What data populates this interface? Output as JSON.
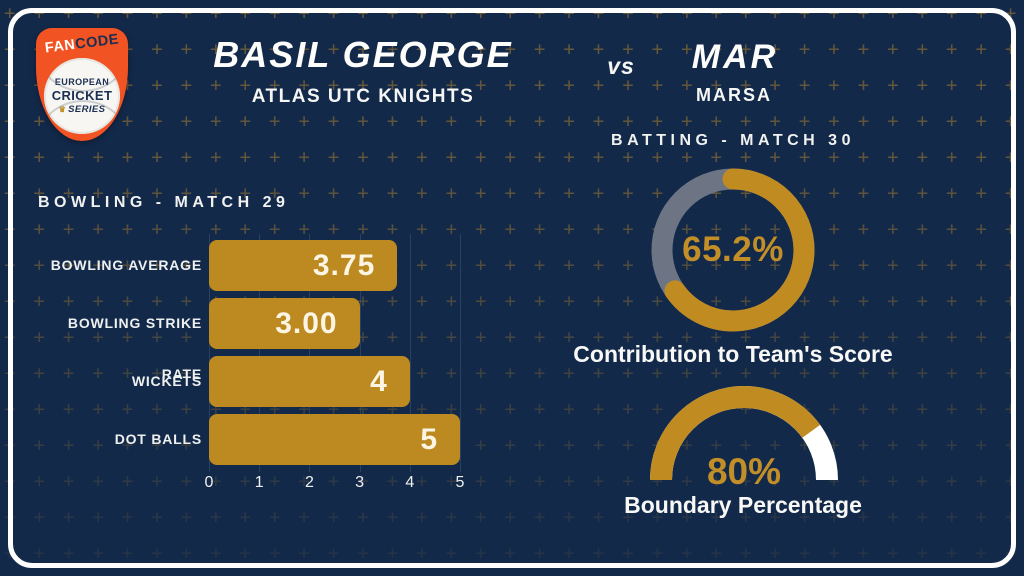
{
  "logo": {
    "brand_fan": "FAN",
    "brand_code": "CODE",
    "circle_line1": "EUROPEAN",
    "circle_line2": "CRICKET",
    "circle_line3": "SERIES"
  },
  "icons": {
    "crown": "♛"
  },
  "header": {
    "player_left": "BASIL GEORGE",
    "team_left": "ATLAS UTC KNIGHTS",
    "versus": "vs",
    "player_right": "MAR",
    "team_right": "MARSA"
  },
  "chart_data": [
    {
      "type": "bar",
      "orientation": "horizontal",
      "title": "BOWLING - MATCH 29",
      "categories": [
        "BOWLING AVERAGE",
        "BOWLING STRIKE RATE",
        "WICKETS",
        "DOT BALLS"
      ],
      "values": [
        3.75,
        3.0,
        4,
        5
      ],
      "value_labels": [
        "3.75",
        "3.00",
        "4",
        "5"
      ],
      "xlim": [
        0,
        5
      ],
      "x_ticks": [
        0,
        1,
        2,
        3,
        4,
        5
      ],
      "grid": true,
      "bar_color": "#bc8a20"
    },
    {
      "type": "donut",
      "title": "BATTING - MATCH 30",
      "value": 65.2,
      "value_label": "65.2%",
      "label": "Contribution to Team's Score",
      "start": "top",
      "direction": "clockwise",
      "filled_color": "#c08c22",
      "rest_color": "#6d7585"
    },
    {
      "type": "gauge",
      "shape": "semicircle",
      "value": 80,
      "value_label": "80%",
      "label": "Boundary Percentage",
      "range": [
        0,
        100
      ],
      "filled_color": "#c08c22",
      "rest_color": "#ffffff"
    }
  ],
  "colors": {
    "background": "#13294a",
    "frame": "#ffffff",
    "accent_gold": "#bc8a20",
    "gold_text": "#c18e28",
    "donut_rest_gray": "#6d7585",
    "gauge_rest": "#ffffff",
    "pattern_plus": "#a87d2c",
    "logo_orange": "#f15322",
    "logo_navy": "#1a2f52",
    "text_white": "#f5f6f4"
  }
}
